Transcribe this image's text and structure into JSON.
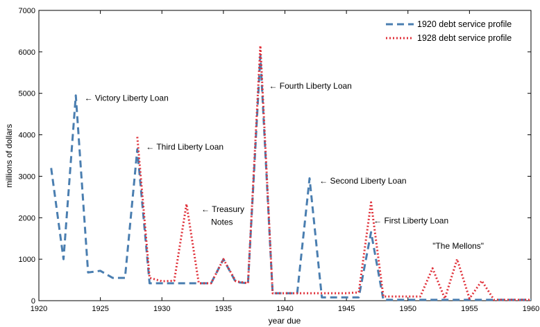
{
  "chart_data": {
    "type": "line",
    "xlabel": "year due",
    "ylabel": "millions of dollars",
    "xlim": [
      1920,
      1960
    ],
    "ylim": [
      0,
      7000
    ],
    "xticks": [
      1920,
      1925,
      1930,
      1935,
      1940,
      1945,
      1950,
      1955,
      1960
    ],
    "yticks": [
      0,
      1000,
      2000,
      3000,
      4000,
      5000,
      6000,
      7000
    ],
    "grid": false,
    "legend_position": "top-right",
    "series": [
      {
        "name": "1920 debt service profile",
        "color": "#4a7eb0",
        "dash": "dashed",
        "x": [
          1921,
          1922,
          1923,
          1924,
          1925,
          1926,
          1927,
          1928,
          1929,
          1930,
          1931,
          1932,
          1933,
          1934,
          1935,
          1936,
          1937,
          1938,
          1939,
          1940,
          1941,
          1942,
          1943,
          1944,
          1945,
          1946,
          1947,
          1948,
          1949,
          1950,
          1951,
          1952,
          1953,
          1954,
          1955,
          1956,
          1957,
          1958,
          1959,
          1960
        ],
        "y": [
          3200,
          1000,
          4950,
          680,
          720,
          550,
          550,
          3650,
          420,
          420,
          420,
          420,
          420,
          420,
          1000,
          450,
          420,
          5900,
          180,
          180,
          180,
          2950,
          80,
          80,
          80,
          80,
          1650,
          20,
          20,
          20,
          20,
          20,
          20,
          20,
          20,
          20,
          20,
          20,
          20,
          20
        ]
      },
      {
        "name": "1928 debt service profile",
        "color": "#e0313a",
        "dash": "dotted",
        "x": [
          1928,
          1929,
          1930,
          1931,
          1932,
          1933,
          1934,
          1935,
          1936,
          1937,
          1938,
          1939,
          1940,
          1941,
          1942,
          1943,
          1944,
          1945,
          1946,
          1947,
          1948,
          1949,
          1950,
          1951,
          1952,
          1953,
          1954,
          1955,
          1956,
          1957,
          1958,
          1959,
          1960
        ],
        "y": [
          3950,
          550,
          470,
          480,
          2330,
          420,
          420,
          1000,
          470,
          420,
          6150,
          180,
          180,
          180,
          180,
          180,
          180,
          180,
          200,
          2370,
          100,
          100,
          100,
          100,
          780,
          50,
          1000,
          50,
          480,
          20,
          20,
          20,
          20
        ]
      }
    ],
    "annotations": [
      {
        "text": "← Victory Liberty Loan",
        "x": 1923.7,
        "y": 4820
      },
      {
        "text": "← Third Liberty Loan",
        "x": 1928.7,
        "y": 3640
      },
      {
        "text": "← Treasury",
        "x": 1933.2,
        "y": 2140
      },
      {
        "text": "Notes",
        "x": 1934.0,
        "y": 1830
      },
      {
        "text": "← Fourth Liberty Loan",
        "x": 1938.7,
        "y": 5110
      },
      {
        "text": "← Second Liberty Loan",
        "x": 1942.8,
        "y": 2820
      },
      {
        "text": "← First Liberty Loan",
        "x": 1947.2,
        "y": 1860
      },
      {
        "text": "\"The Mellons\"",
        "x": 1952.0,
        "y": 1250
      }
    ]
  }
}
